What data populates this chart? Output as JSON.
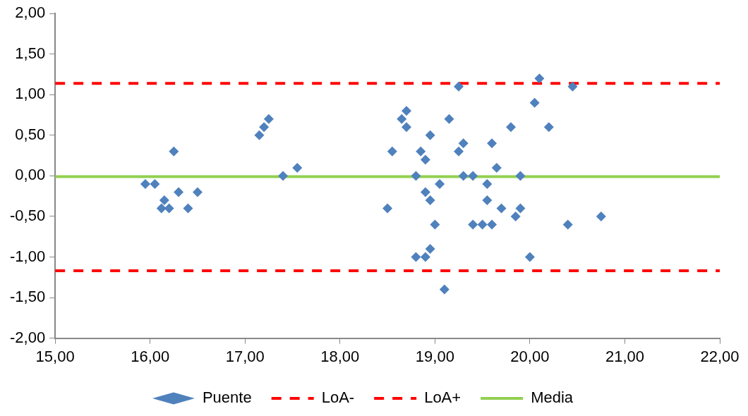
{
  "chart_data": {
    "type": "scatter",
    "xlim": [
      15,
      22
    ],
    "ylim": [
      -2,
      2
    ],
    "xticks": [
      {
        "value": 15,
        "label": "15,00"
      },
      {
        "value": 16,
        "label": "16,00"
      },
      {
        "value": 17,
        "label": "17,00"
      },
      {
        "value": 18,
        "label": "18,00"
      },
      {
        "value": 19,
        "label": "19,00"
      },
      {
        "value": 20,
        "label": "20,00"
      },
      {
        "value": 21,
        "label": "21,00"
      },
      {
        "value": 22,
        "label": "22,00"
      }
    ],
    "yticks": [
      {
        "value": -2,
        "label": "-2,00"
      },
      {
        "value": -1.5,
        "label": "-1,50"
      },
      {
        "value": -1,
        "label": "-1,00"
      },
      {
        "value": -0.5,
        "label": "-0,50"
      },
      {
        "value": 0,
        "label": "0,00"
      },
      {
        "value": 0.5,
        "label": "0,50"
      },
      {
        "value": 1,
        "label": "1,00"
      },
      {
        "value": 1.5,
        "label": "1,50"
      },
      {
        "value": 2,
        "label": "2,00"
      }
    ],
    "grid": false,
    "legend": "bottom",
    "series": [
      {
        "name": "Puente",
        "type": "scatter",
        "marker": "diamond",
        "color": "#4f81bd",
        "x": [
          15.95,
          16.05,
          16.25,
          16.12,
          16.15,
          16.2,
          16.3,
          16.4,
          16.5,
          17.15,
          17.2,
          17.25,
          17.4,
          17.55,
          18.5,
          18.55,
          18.65,
          18.7,
          18.7,
          18.8,
          18.8,
          18.85,
          18.9,
          18.9,
          18.9,
          18.95,
          18.95,
          18.95,
          19.0,
          19.05,
          19.1,
          19.15,
          19.25,
          19.25,
          19.3,
          19.3,
          19.4,
          19.4,
          19.5,
          19.55,
          19.55,
          19.6,
          19.6,
          19.65,
          19.7,
          19.8,
          19.85,
          19.9,
          19.9,
          20.0,
          20.05,
          20.1,
          20.2,
          20.4,
          20.45,
          20.75
        ],
        "values": [
          -0.1,
          -0.1,
          0.3,
          -0.4,
          -0.3,
          -0.4,
          -0.2,
          -0.4,
          -0.2,
          0.5,
          0.6,
          0.7,
          0.0,
          0.1,
          -0.4,
          0.3,
          0.7,
          0.8,
          0.6,
          0.0,
          -1.0,
          0.3,
          0.2,
          -0.2,
          -1.0,
          0.5,
          -0.3,
          -0.9,
          -0.6,
          -0.1,
          -1.4,
          0.7,
          1.1,
          0.3,
          0.4,
          0.0,
          0.0,
          -0.6,
          -0.6,
          -0.1,
          -0.3,
          0.4,
          -0.6,
          0.1,
          -0.4,
          0.6,
          -0.5,
          -0.4,
          0.0,
          -1.0,
          0.9,
          1.2,
          0.6,
          -0.6,
          1.1,
          -0.5
        ]
      },
      {
        "name": "LoA-",
        "type": "line",
        "marker": "none",
        "line_style": "dashed",
        "color": "#ff0000",
        "x": [
          15,
          22
        ],
        "values": [
          -1.17,
          -1.17
        ]
      },
      {
        "name": "LoA+",
        "type": "line",
        "marker": "none",
        "line_style": "dashed",
        "color": "#ff0000",
        "x": [
          15,
          22
        ],
        "values": [
          1.14,
          1.14
        ]
      },
      {
        "name": "Media",
        "type": "line",
        "marker": "none",
        "line_style": "solid",
        "color": "#92d050",
        "x": [
          15,
          22
        ],
        "values": [
          -0.01,
          -0.01
        ]
      }
    ]
  }
}
